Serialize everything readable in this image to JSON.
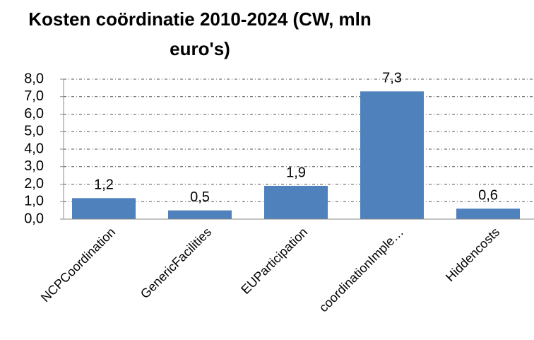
{
  "chart_data": {
    "type": "bar",
    "title": "Kosten coördinatie 2010-2024 (CW, mln euro's)",
    "categories": [
      "NCPCoordination",
      "GenericFacilities",
      "EUParticipation",
      "coordinationImple…",
      "Hiddencosts"
    ],
    "values": [
      1.2,
      0.5,
      1.9,
      7.3,
      0.6
    ],
    "value_labels": [
      "1,2",
      "0,5",
      "1,9",
      "7,3",
      "0,6"
    ],
    "color": "#4f81bd",
    "ylim": [
      0,
      8
    ],
    "yticks": [
      {
        "value": 0,
        "label": "0,0"
      },
      {
        "value": 1,
        "label": "1,0"
      },
      {
        "value": 2,
        "label": "2,0"
      },
      {
        "value": 3,
        "label": "3,0"
      },
      {
        "value": 4,
        "label": "4,0"
      },
      {
        "value": 5,
        "label": "5,0"
      },
      {
        "value": 6,
        "label": "6,0"
      },
      {
        "value": 7,
        "label": "7,0"
      },
      {
        "value": 8,
        "label": "8,0"
      }
    ],
    "grid": true
  }
}
